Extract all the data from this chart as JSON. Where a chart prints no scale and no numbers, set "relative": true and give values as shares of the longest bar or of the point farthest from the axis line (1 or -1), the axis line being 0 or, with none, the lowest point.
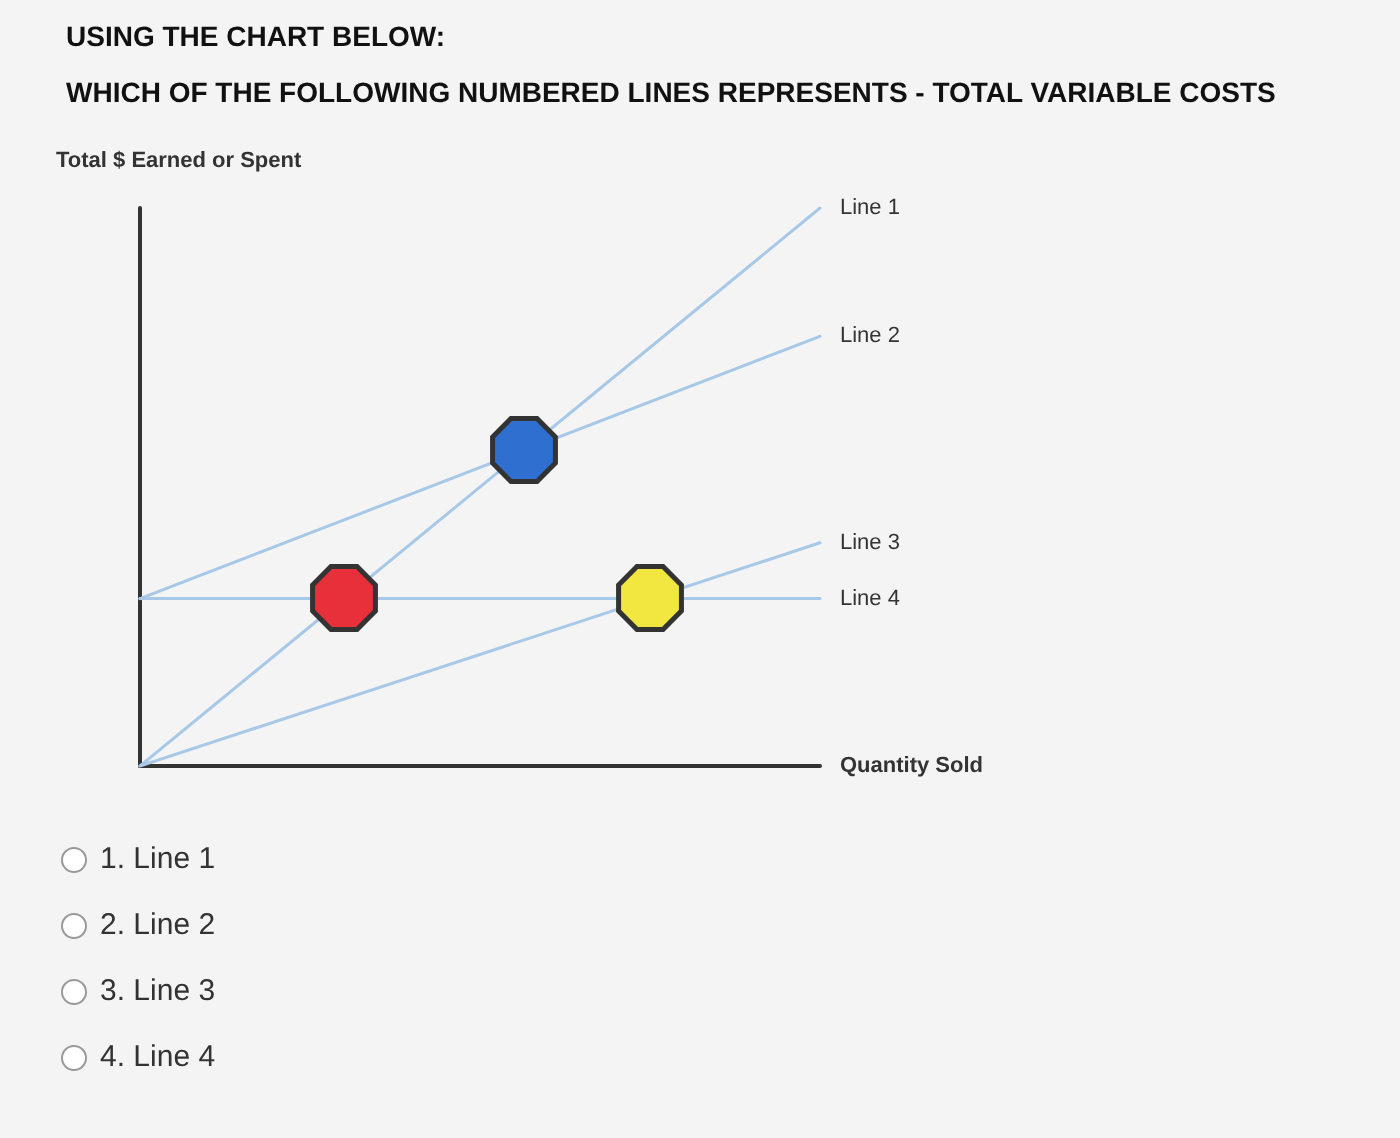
{
  "chart_data": {
    "type": "line",
    "title": "USING THE CHART BELOW:",
    "subtitle": "WHICH OF THE FOLLOWING NUMBERED LINES REPRESENTS - TOTAL VARIABLE COSTS",
    "ylabel": "Total $ Earned or Spent",
    "xlabel": "Quantity Sold",
    "relative": true,
    "categories": [
      null,
      null
    ],
    "marker": "none",
    "line_style": "solid",
    "grid": false,
    "legend": false,
    "series": [
      {
        "name": "Line 1",
        "color": "#a8c8e8",
        "values": [
          0,
          1
        ]
      },
      {
        "name": "Line 2",
        "color": "#a8c8e8",
        "values": [
          0.3,
          0.77
        ]
      },
      {
        "name": "Line 3",
        "color": "#a8c8e8",
        "values": [
          0,
          0.4
        ]
      },
      {
        "name": "Line 4",
        "color": "#a8c8e8",
        "values": [
          0.3,
          0.3
        ]
      }
    ],
    "annotations": [
      "1. Line 1",
      "2. Line 2",
      "3. Line 3",
      "4. Line 4"
    ]
  }
}
